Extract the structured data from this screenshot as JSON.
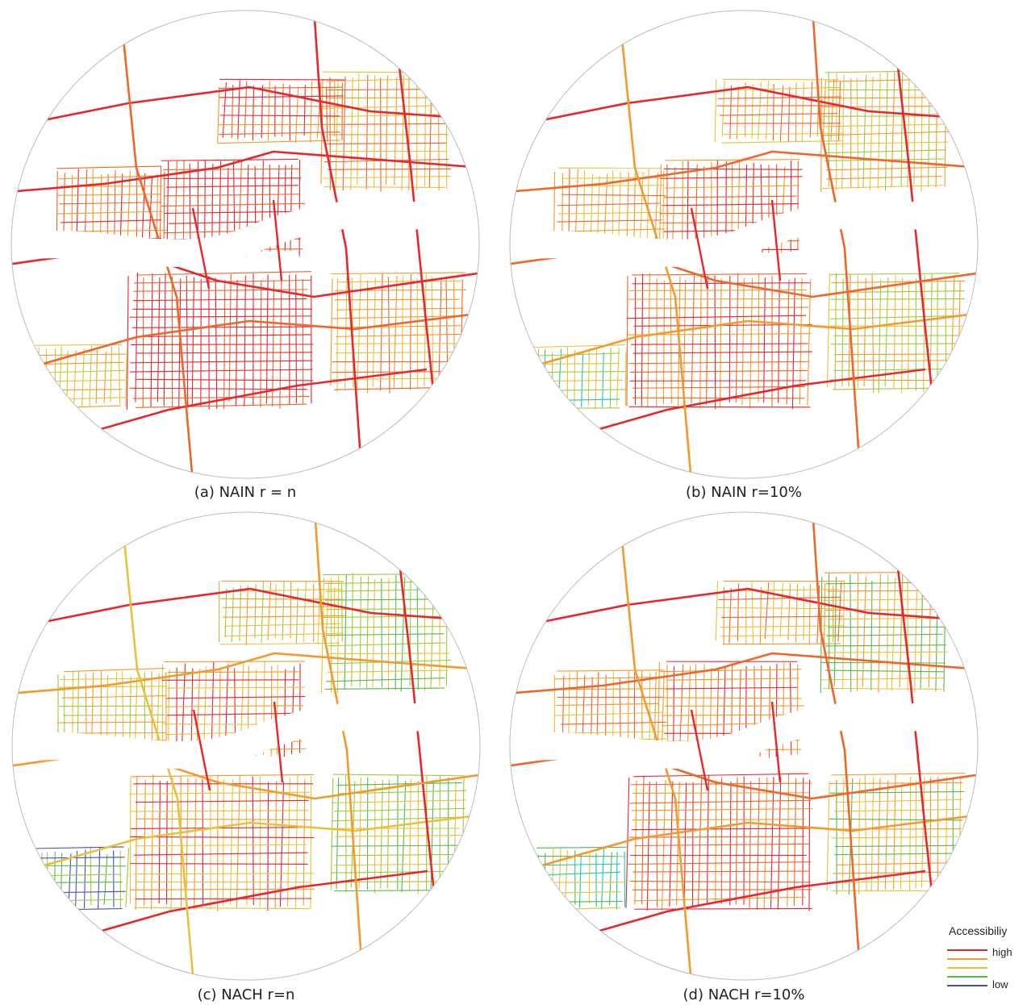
{
  "panels": [
    {
      "id": "a",
      "caption": "(a) NAIN r = n",
      "metric": "NAIN",
      "radius": "r = n",
      "palette": [
        "#e8262b",
        "#e8262b",
        "#f0652a",
        "#f29a2c",
        "#e8c13a",
        "#bcd03a"
      ]
    },
    {
      "id": "b",
      "caption": "(b) NAIN r=10%",
      "metric": "NAIN",
      "radius": "r=10%",
      "palette": [
        "#e8262b",
        "#f0652a",
        "#f29a2c",
        "#e8c13a",
        "#9ccc3c",
        "#19c9b0",
        "#1aa4d8"
      ]
    },
    {
      "id": "c",
      "caption": "(c) NACH r=n",
      "metric": "NACH",
      "radius": "r=n",
      "palette": [
        "#e8262b",
        "#f29a2c",
        "#e8c13a",
        "#9ccc3c",
        "#56b948",
        "#3f4fc8"
      ]
    },
    {
      "id": "d",
      "caption": "(d) NACH r=10%",
      "metric": "NACH",
      "radius": "r=10%",
      "palette": [
        "#e8262b",
        "#f0652a",
        "#f29a2c",
        "#e8c13a",
        "#56b948",
        "#19c9b0",
        "#3f4fc8"
      ]
    }
  ],
  "legend": {
    "title": "Accessibiliy",
    "high_label": "high",
    "low_label": "low",
    "colors": [
      "#e8262b",
      "#f29a2c",
      "#e8c13a",
      "#56b948",
      "#3f4fc8"
    ]
  }
}
